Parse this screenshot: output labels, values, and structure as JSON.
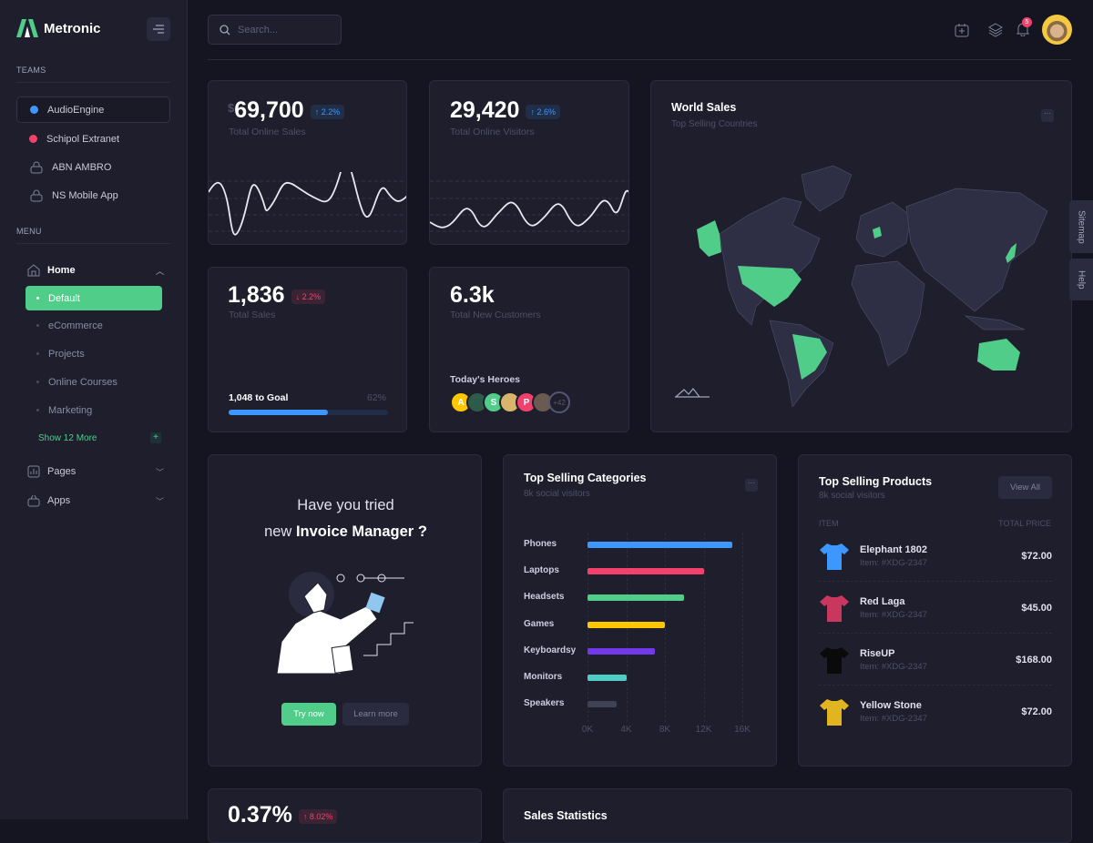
{
  "brand": {
    "name": "Metronic",
    "accent": "#50cd89"
  },
  "sidebar": {
    "teams_label": "TEAMS",
    "teams": [
      {
        "label": "AudioEngine",
        "icon": "dot-blue"
      },
      {
        "label": "Schipol Extranet",
        "icon": "dot-red"
      },
      {
        "label": "ABN AMBRO",
        "icon": "lock-icon"
      },
      {
        "label": "NS Mobile App",
        "icon": "lock-icon"
      }
    ],
    "menu_label": "MENU",
    "home": "Home",
    "home_items": [
      "Default",
      "eCommerce",
      "Projects",
      "Online Courses",
      "Marketing"
    ],
    "show_more": "Show 12 More",
    "pages": "Pages",
    "apps": "Apps"
  },
  "header": {
    "search_placeholder": "Search...",
    "notifications": "5"
  },
  "stats": {
    "online_sales": {
      "currency": "$",
      "value": "69,700",
      "change": "2.2%",
      "label": "Total Online Sales"
    },
    "online_visitors": {
      "value": "29,420",
      "change": "2.6%",
      "label": "Total Online Visitors"
    },
    "total_sales": {
      "value": "1,836",
      "change": "2.2%",
      "label": "Total Sales",
      "goal": "1,048 to Goal",
      "goal_pct": "62%",
      "progress": 62
    },
    "customers": {
      "value": "6.3k",
      "label": "Total New Customers",
      "heroes_label": "Today's Heroes",
      "heroes": [
        "A",
        "",
        "S",
        "",
        "P",
        ""
      ],
      "more": "+42"
    }
  },
  "world_sales": {
    "title": "World Sales",
    "subtitle": "Top Selling Countries",
    "highlighted": [
      "Alaska",
      "United States",
      "Brazil",
      "Germany",
      "Japan",
      "Australia"
    ]
  },
  "promo": {
    "line1": "Have you tried",
    "line2_pre": "new ",
    "line2_bold": "Invoice Manager ?",
    "try": "Try now",
    "learn": "Learn more"
  },
  "chart_data": {
    "type": "bar",
    "orientation": "horizontal",
    "title": "Top Selling Categories",
    "subtitle": "8k social visitors",
    "categories": [
      "Phones",
      "Laptops",
      "Headsets",
      "Games",
      "Keyboardsy",
      "Monitors",
      "Speakers"
    ],
    "values": [
      15000,
      12000,
      10000,
      8000,
      7000,
      4000,
      3000
    ],
    "colors": [
      "#3e97ff",
      "#f1416c",
      "#50cd89",
      "#ffc700",
      "#7239ea",
      "#50cdc5",
      "#3f4254"
    ],
    "xticks": [
      "0K",
      "4K",
      "8K",
      "12K",
      "16K"
    ],
    "xlim": [
      0,
      16000
    ],
    "grid": true
  },
  "products": {
    "title": "Top Selling Products",
    "subtitle": "8k social visitors",
    "view_all": "View All",
    "col_item": "ITEM",
    "col_price": "TOTAL PRICE",
    "items": [
      {
        "name": "Elephant 1802",
        "id": "Item: #XDG-2347",
        "price": "$72.00",
        "color": "#3e97ff"
      },
      {
        "name": "Red Laga",
        "id": "Item: #XDG-2347",
        "price": "$45.00",
        "color": "#c9365e"
      },
      {
        "name": "RiseUP",
        "id": "Item: #XDG-2347",
        "price": "$168.00",
        "color": "#0a0a0a"
      },
      {
        "name": "Yellow Stone",
        "id": "Item: #XDG-2347",
        "price": "$72.00",
        "color": "#e0b520"
      }
    ]
  },
  "bottom": {
    "value": "0.37%",
    "change": "8.02%",
    "sales_stats": "Sales Statistics"
  },
  "side_tabs": [
    "Sitemap",
    "Help"
  ]
}
